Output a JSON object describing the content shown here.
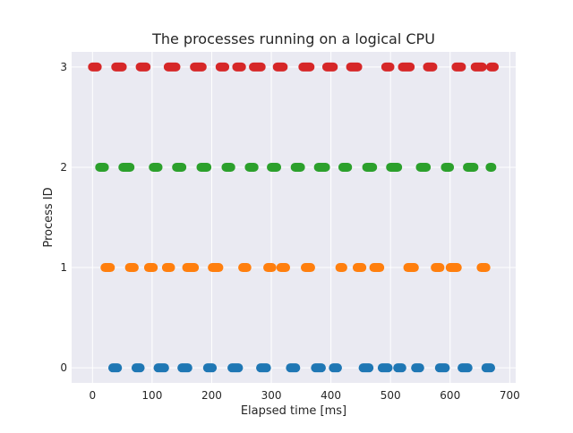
{
  "chart_data": {
    "type": "scatter",
    "title": "The processes running on a logical CPU",
    "xlabel": "Elapsed time [ms]",
    "ylabel": "Process ID",
    "xlim": [
      -35,
      710
    ],
    "ylim": [
      -0.15,
      3.15
    ],
    "xticks": [
      0,
      100,
      200,
      300,
      400,
      500,
      600,
      700
    ],
    "yticks": [
      0,
      1,
      2,
      3
    ],
    "grid": true,
    "legend": "none",
    "series": [
      {
        "process_id": 0,
        "color": "#1f77b4",
        "segments": [
          [
            34,
            42
          ],
          [
            73,
            80
          ],
          [
            110,
            121
          ],
          [
            150,
            160
          ],
          [
            193,
            201
          ],
          [
            234,
            245
          ],
          [
            282,
            292
          ],
          [
            332,
            341
          ],
          [
            374,
            384
          ],
          [
            404,
            411
          ],
          [
            454,
            464
          ],
          [
            486,
            496
          ],
          [
            512,
            519
          ],
          [
            542,
            549
          ],
          [
            582,
            592
          ],
          [
            620,
            630
          ],
          [
            660,
            668
          ]
        ]
      },
      {
        "process_id": 1,
        "color": "#ff7f0e",
        "segments": [
          [
            21,
            30
          ],
          [
            62,
            70
          ],
          [
            94,
            102
          ],
          [
            124,
            131
          ],
          [
            158,
            171
          ],
          [
            201,
            212
          ],
          [
            252,
            259
          ],
          [
            294,
            301
          ],
          [
            316,
            324
          ],
          [
            357,
            366
          ],
          [
            415,
            420
          ],
          [
            444,
            452
          ],
          [
            472,
            482
          ],
          [
            529,
            540
          ],
          [
            575,
            583
          ],
          [
            600,
            612
          ],
          [
            652,
            660
          ]
        ]
      },
      {
        "process_id": 2,
        "color": "#2ca02c",
        "segments": [
          [
            12,
            20
          ],
          [
            51,
            63
          ],
          [
            102,
            110
          ],
          [
            141,
            150
          ],
          [
            182,
            192
          ],
          [
            224,
            232
          ],
          [
            263,
            271
          ],
          [
            300,
            309
          ],
          [
            340,
            349
          ],
          [
            379,
            391
          ],
          [
            420,
            428
          ],
          [
            460,
            470
          ],
          [
            500,
            512
          ],
          [
            550,
            560
          ],
          [
            592,
            599
          ],
          [
            629,
            640
          ],
          [
            667,
            670
          ]
        ]
      },
      {
        "process_id": 3,
        "color": "#d62728",
        "segments": [
          [
            0,
            8
          ],
          [
            39,
            50
          ],
          [
            80,
            90
          ],
          [
            127,
            140
          ],
          [
            171,
            184
          ],
          [
            214,
            222
          ],
          [
            242,
            250
          ],
          [
            270,
            283
          ],
          [
            310,
            320
          ],
          [
            353,
            365
          ],
          [
            393,
            404
          ],
          [
            433,
            445
          ],
          [
            492,
            499
          ],
          [
            520,
            533
          ],
          [
            562,
            571
          ],
          [
            610,
            619
          ],
          [
            642,
            654
          ],
          [
            668,
            674
          ]
        ]
      }
    ]
  }
}
